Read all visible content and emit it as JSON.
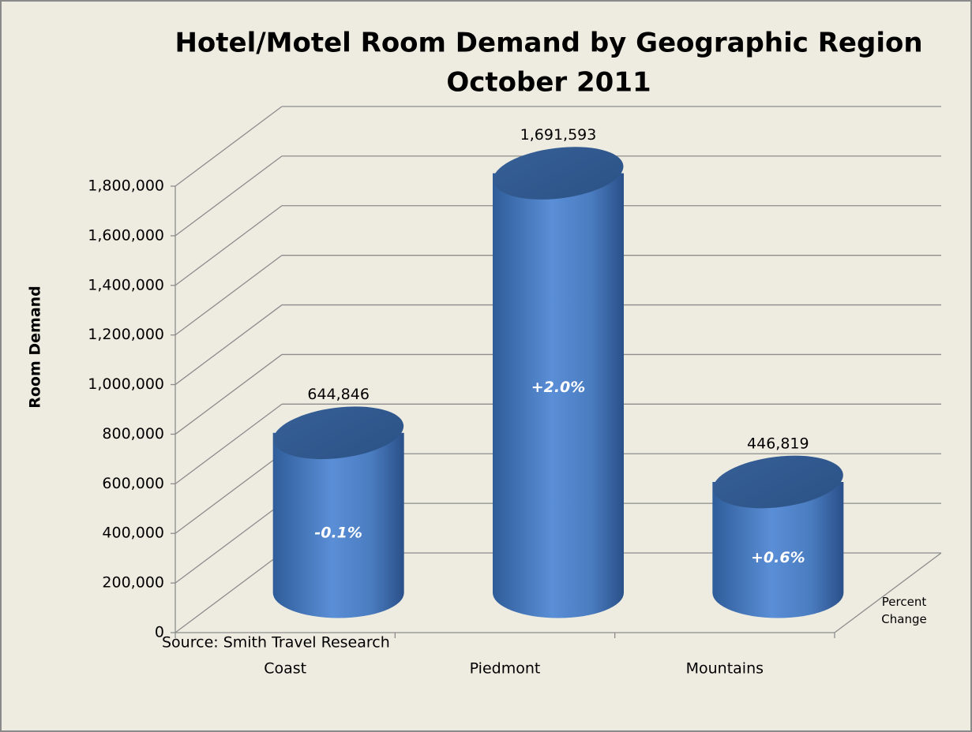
{
  "chart_data": {
    "type": "cylinder",
    "title": "Hotel/Motel Room Demand by Geographic Region",
    "subtitle": "October 2011",
    "y_axis_label": "Room Demand",
    "z_axis_label": "Percent Change",
    "source": "Source: Smith Travel Research",
    "categories": [
      "Coast",
      "Piedmont",
      "Mountains"
    ],
    "values": [
      644846,
      1691593,
      446819
    ],
    "value_labels": [
      "644,846",
      "1,691,593",
      "446,819"
    ],
    "annotations": [
      "-0.1%",
      "+2.0%",
      "+0.6%"
    ],
    "color": "#4f81bd",
    "ylim": [
      0,
      1800000
    ],
    "yticks": [
      0,
      {
        "value": 200000,
        "label": "200,000"
      },
      {
        "value": 400000,
        "label": "400,000"
      },
      {
        "value": 600000,
        "label": "600,000"
      },
      {
        "value": 800000,
        "label": "800,000"
      },
      {
        "value": 1000000,
        "label": "1,000,000"
      },
      {
        "value": 1200000,
        "label": "1,200,000"
      },
      {
        "value": 1400000,
        "label": "1,400,000"
      },
      {
        "value": 1600000,
        "label": "1,600,000"
      },
      {
        "value": 1800000,
        "label": "1,800,000"
      }
    ],
    "grid": true
  }
}
